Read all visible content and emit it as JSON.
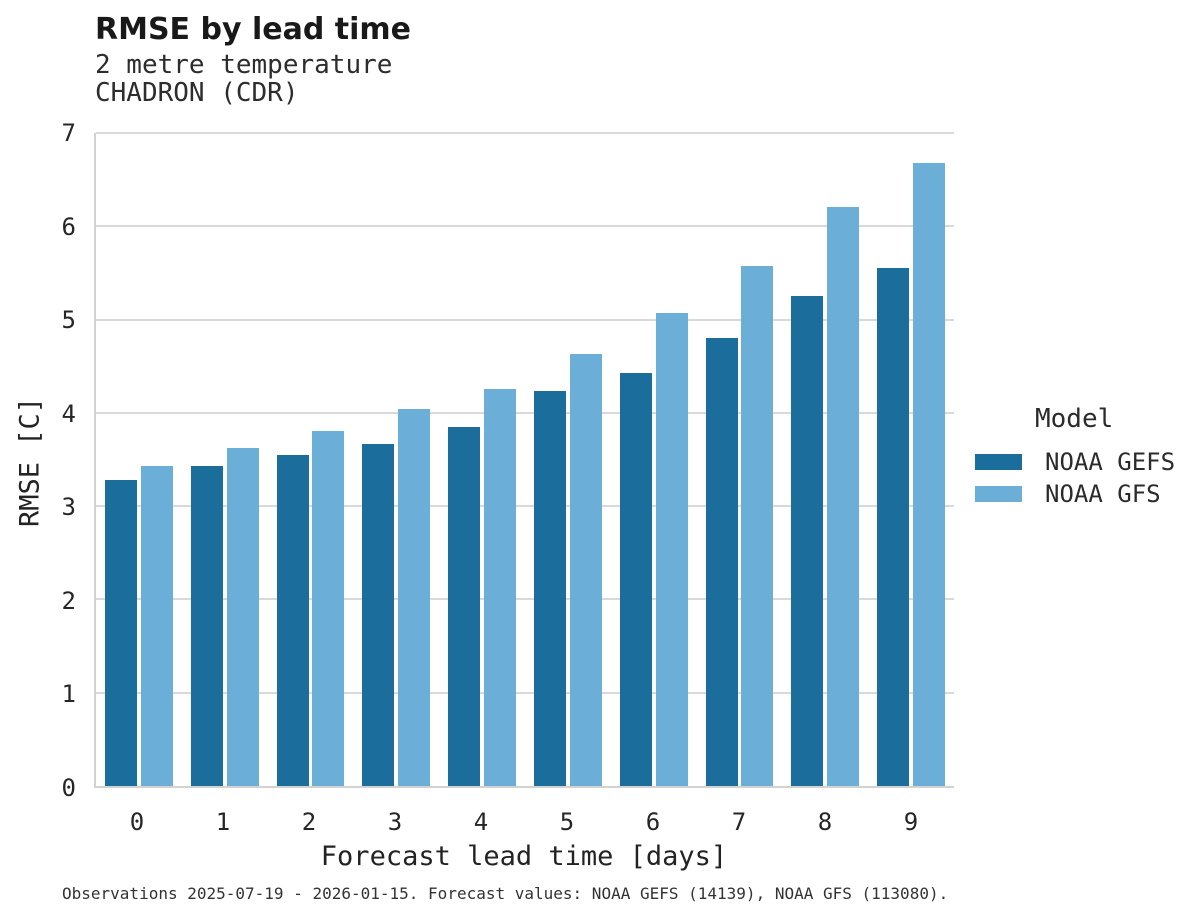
{
  "header": {
    "title": "RMSE by lead time",
    "subtitle_line1": "2 metre temperature",
    "subtitle_line2": "CHADRON (CDR)"
  },
  "legend": {
    "title": "Model",
    "items": [
      {
        "label": "NOAA GEFS",
        "color": "#1b6d9c"
      },
      {
        "label": "NOAA GFS",
        "color": "#6bafd9"
      }
    ]
  },
  "footer": {
    "text": "Observations 2025-07-19 - 2026-01-15. Forecast values: NOAA GEFS (14139), NOAA GFS (113080)."
  },
  "colors": {
    "gefs_bar": "#1b6d9c",
    "gfs_bar": "#6bafd9",
    "gridline": "#d9d9d9",
    "axis_spine": "#d2d2d2"
  },
  "chart_data": {
    "type": "bar",
    "title": "RMSE by lead time",
    "subtitle": [
      "2 metre temperature",
      "CHADRON (CDR)"
    ],
    "xlabel": "Forecast lead time [days]",
    "ylabel": "RMSE [C]",
    "categories": [
      "0",
      "1",
      "2",
      "3",
      "4",
      "5",
      "6",
      "7",
      "8",
      "9"
    ],
    "series": [
      {
        "name": "NOAA GEFS",
        "color": "#1b6d9c",
        "values": [
          3.28,
          3.43,
          3.55,
          3.67,
          3.85,
          4.23,
          4.43,
          4.8,
          5.25,
          5.55
        ]
      },
      {
        "name": "NOAA GFS",
        "color": "#6bafd9",
        "values": [
          3.43,
          3.62,
          3.81,
          4.04,
          4.26,
          4.63,
          5.07,
          5.57,
          6.21,
          6.68
        ]
      }
    ],
    "ylim": [
      0,
      7
    ],
    "yticks": [
      0,
      1,
      2,
      3,
      4,
      5,
      6,
      7
    ],
    "grid": true,
    "legend_position": "right",
    "legend_title": "Model",
    "caption": "Observations 2025-07-19 - 2026-01-15. Forecast values: NOAA GEFS (14139), NOAA GFS (113080)."
  }
}
